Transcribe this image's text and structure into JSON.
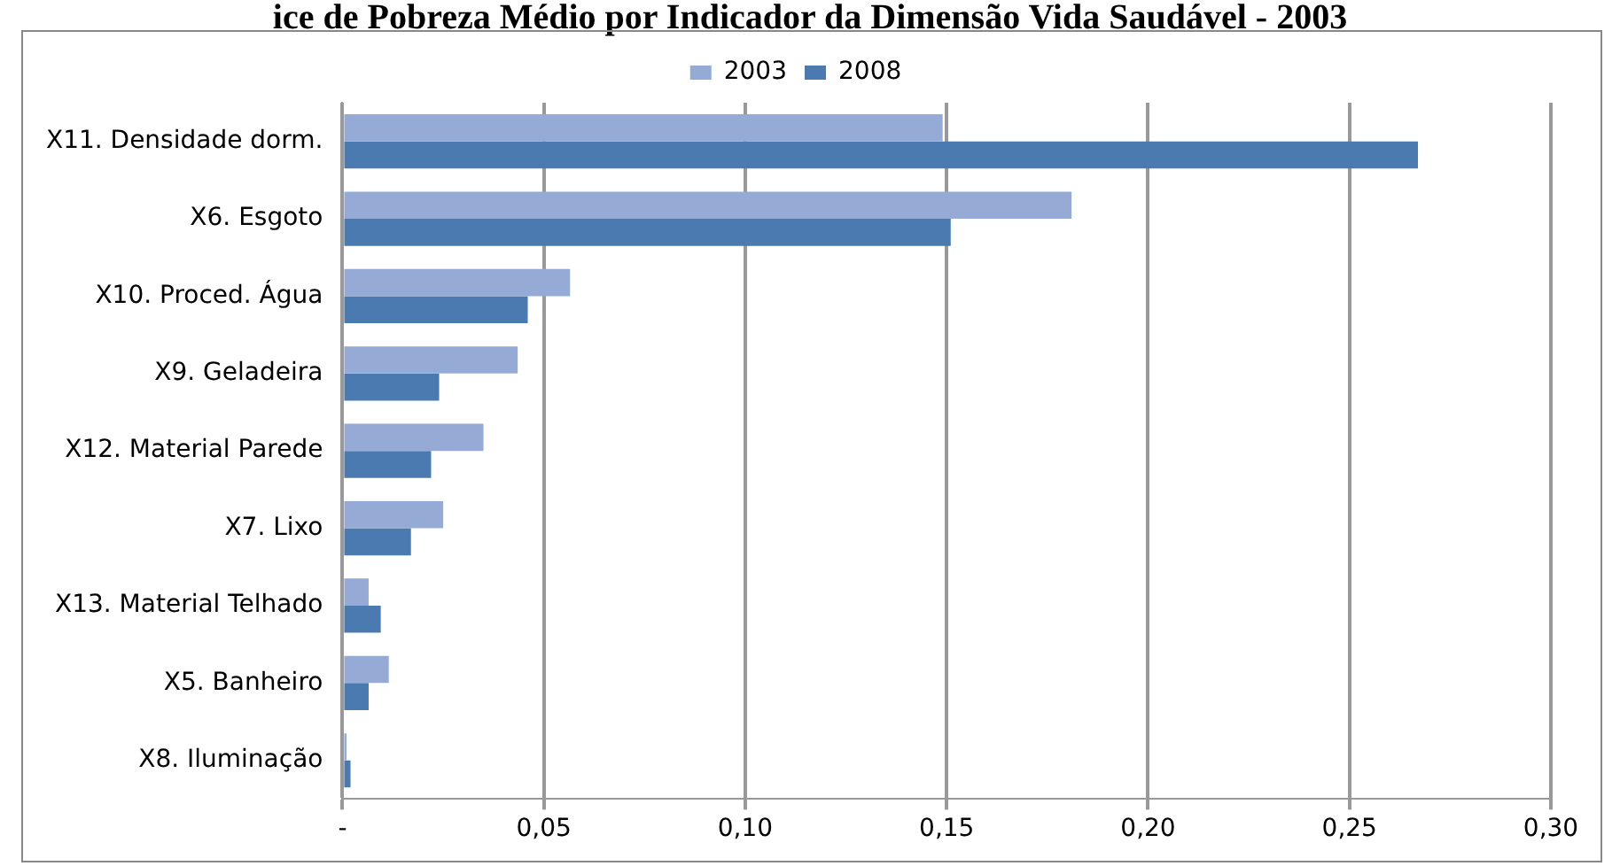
{
  "chart_data": {
    "type": "bar",
    "orientation": "horizontal",
    "title": "ice de Pobreza Médio por Indicador da Dimensão Vida Saudável - 2003",
    "categories": [
      "X11. Densidade dorm.",
      "X6. Esgoto",
      "X10. Proced. Água",
      "X9. Geladeira",
      "X12. Material Parede",
      "X7. Lixo",
      "X13. Material Telhado",
      "X5. Banheiro",
      "X8. Iluminação"
    ],
    "series": [
      {
        "name": "2003",
        "color": "#95abd5",
        "values": [
          0.149,
          0.181,
          0.0565,
          0.0435,
          0.035,
          0.025,
          0.0065,
          0.0115,
          0.001
        ]
      },
      {
        "name": "2008",
        "color": "#4a7ab0",
        "values": [
          0.267,
          0.151,
          0.046,
          0.024,
          0.022,
          0.017,
          0.0095,
          0.0065,
          0.002
        ]
      }
    ],
    "xlim": [
      0,
      0.3
    ],
    "xticks": [
      {
        "value": 0,
        "label": "-"
      },
      {
        "value": 0.05,
        "label": "0,05"
      },
      {
        "value": 0.1,
        "label": "0,10"
      },
      {
        "value": 0.15,
        "label": "0,15"
      },
      {
        "value": 0.2,
        "label": "0,20"
      },
      {
        "value": 0.25,
        "label": "0,25"
      },
      {
        "value": 0.3,
        "label": "0,30"
      }
    ],
    "grid": "x",
    "legend": "top"
  }
}
